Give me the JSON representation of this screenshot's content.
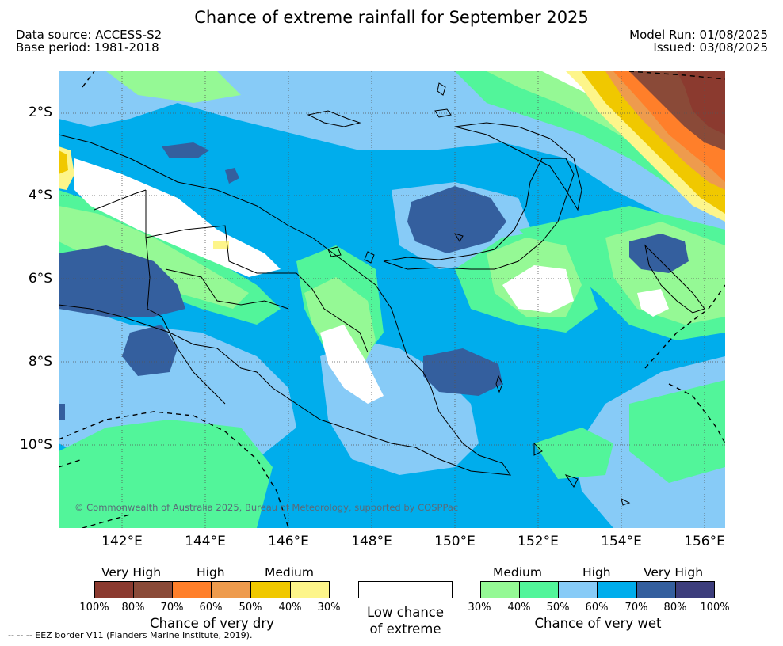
{
  "header": {
    "title": "Chance of extreme rainfall for September 2025",
    "data_source": "Data source: ACCESS-S2",
    "base_period": "Base period: 1981-2018",
    "model_run": "Model Run: 01/08/2025",
    "issued": "Issued: 03/08/2025"
  },
  "map": {
    "region": "Papua New Guinea",
    "lat_labels": [
      "2°S",
      "4°S",
      "6°S",
      "8°S",
      "10°S"
    ],
    "lon_labels": [
      "142°E",
      "144°E",
      "146°E",
      "148°E",
      "150°E",
      "152°E",
      "154°E",
      "156°E"
    ],
    "copyright": "© Commonwealth of Australia 2025, Bureau of Meteorology, supported by COSPPac"
  },
  "legend_dry": {
    "categories": [
      "Very High",
      "High",
      "Medium"
    ],
    "ticks": [
      "100%",
      "80%",
      "70%",
      "60%",
      "50%",
      "40%",
      "30%"
    ],
    "colors": [
      "#8b3a2f",
      "#8a4a38",
      "#ff7f2a",
      "#ee9b4d",
      "#f0c800",
      "#fdf58a"
    ],
    "caption": "Chance of very dry"
  },
  "legend_low": {
    "color": "#ffffff",
    "caption_line1": "Low chance",
    "caption_line2": "of extreme"
  },
  "legend_wet": {
    "categories": [
      "Medium",
      "High",
      "Very High"
    ],
    "ticks": [
      "30%",
      "40%",
      "50%",
      "60%",
      "70%",
      "80%",
      "100%"
    ],
    "colors": [
      "#95f995",
      "#52f59a",
      "#87cbf7",
      "#00adec",
      "#345f9e",
      "#3c3d7c"
    ],
    "caption": "Chance of very wet"
  },
  "footnote": "--  --  -- EEZ border V11 (Flanders Marine Institute, 2019)."
}
